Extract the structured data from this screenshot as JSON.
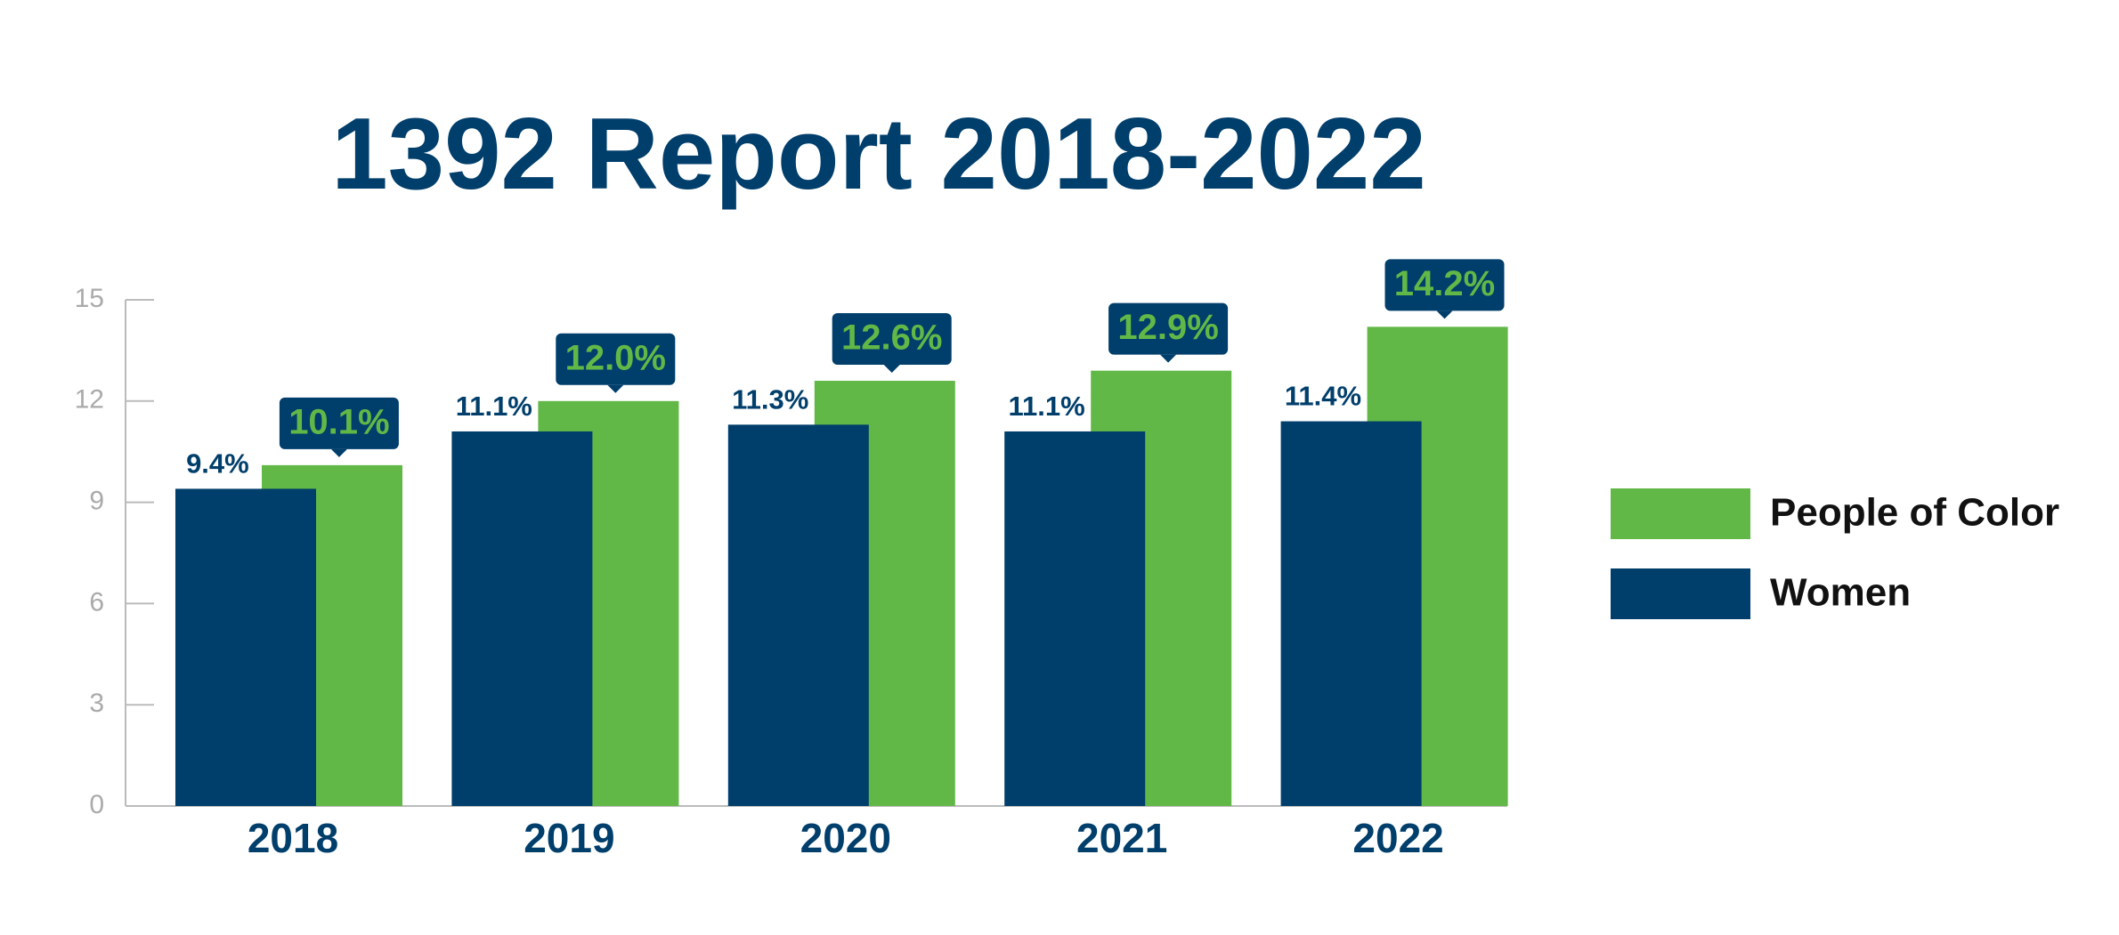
{
  "chart_data": {
    "type": "bar",
    "title": "1392 Report 2018-2022",
    "categories": [
      "2018",
      "2019",
      "2020",
      "2021",
      "2022"
    ],
    "series": [
      {
        "name": "People of Color",
        "color": "#62b847",
        "values": [
          10.1,
          12,
          12.6,
          12.9,
          14.2
        ],
        "value_labels": [
          "10.1%",
          "12.0%",
          "12.6%",
          "12.9%",
          "14.2%"
        ]
      },
      {
        "name": "Women",
        "color": "#003e6b",
        "values": [
          9.4,
          11.1,
          11.3,
          11.1,
          11.4
        ],
        "value_labels": [
          "9.4%",
          "11.1%",
          "11.3%",
          "11.1%",
          "11.4%"
        ]
      }
    ],
    "ylim": [
      0,
      15
    ],
    "yticks": [
      0,
      3,
      6,
      9,
      12,
      15
    ],
    "grid": false,
    "legend": "right"
  }
}
